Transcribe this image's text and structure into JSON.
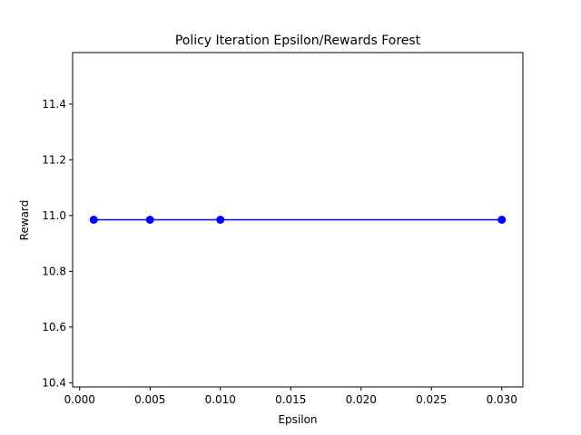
{
  "chart_data": {
    "type": "line",
    "title": "Policy Iteration Epsilon/Rewards Forest",
    "xlabel": "Epsilon",
    "ylabel": "Reward",
    "xlim": [
      -0.0005,
      0.0315
    ],
    "ylim": [
      10.385,
      11.585
    ],
    "xticks": [
      0.0,
      0.005,
      0.01,
      0.015,
      0.02,
      0.025,
      0.03
    ],
    "xtick_labels": [
      "0.000",
      "0.005",
      "0.010",
      "0.015",
      "0.020",
      "0.025",
      "0.030"
    ],
    "yticks": [
      10.4,
      10.6,
      10.8,
      11.0,
      11.2,
      11.4
    ],
    "ytick_labels": [
      "10.4",
      "10.6",
      "10.8",
      "11.0",
      "11.2",
      "11.4"
    ],
    "grid": false,
    "legend": "none",
    "series": [
      {
        "color": "#0000ff",
        "marker": "circle",
        "x": [
          0.001,
          0.005,
          0.01,
          0.03
        ],
        "y": [
          10.985,
          10.985,
          10.985,
          10.985
        ]
      }
    ]
  }
}
